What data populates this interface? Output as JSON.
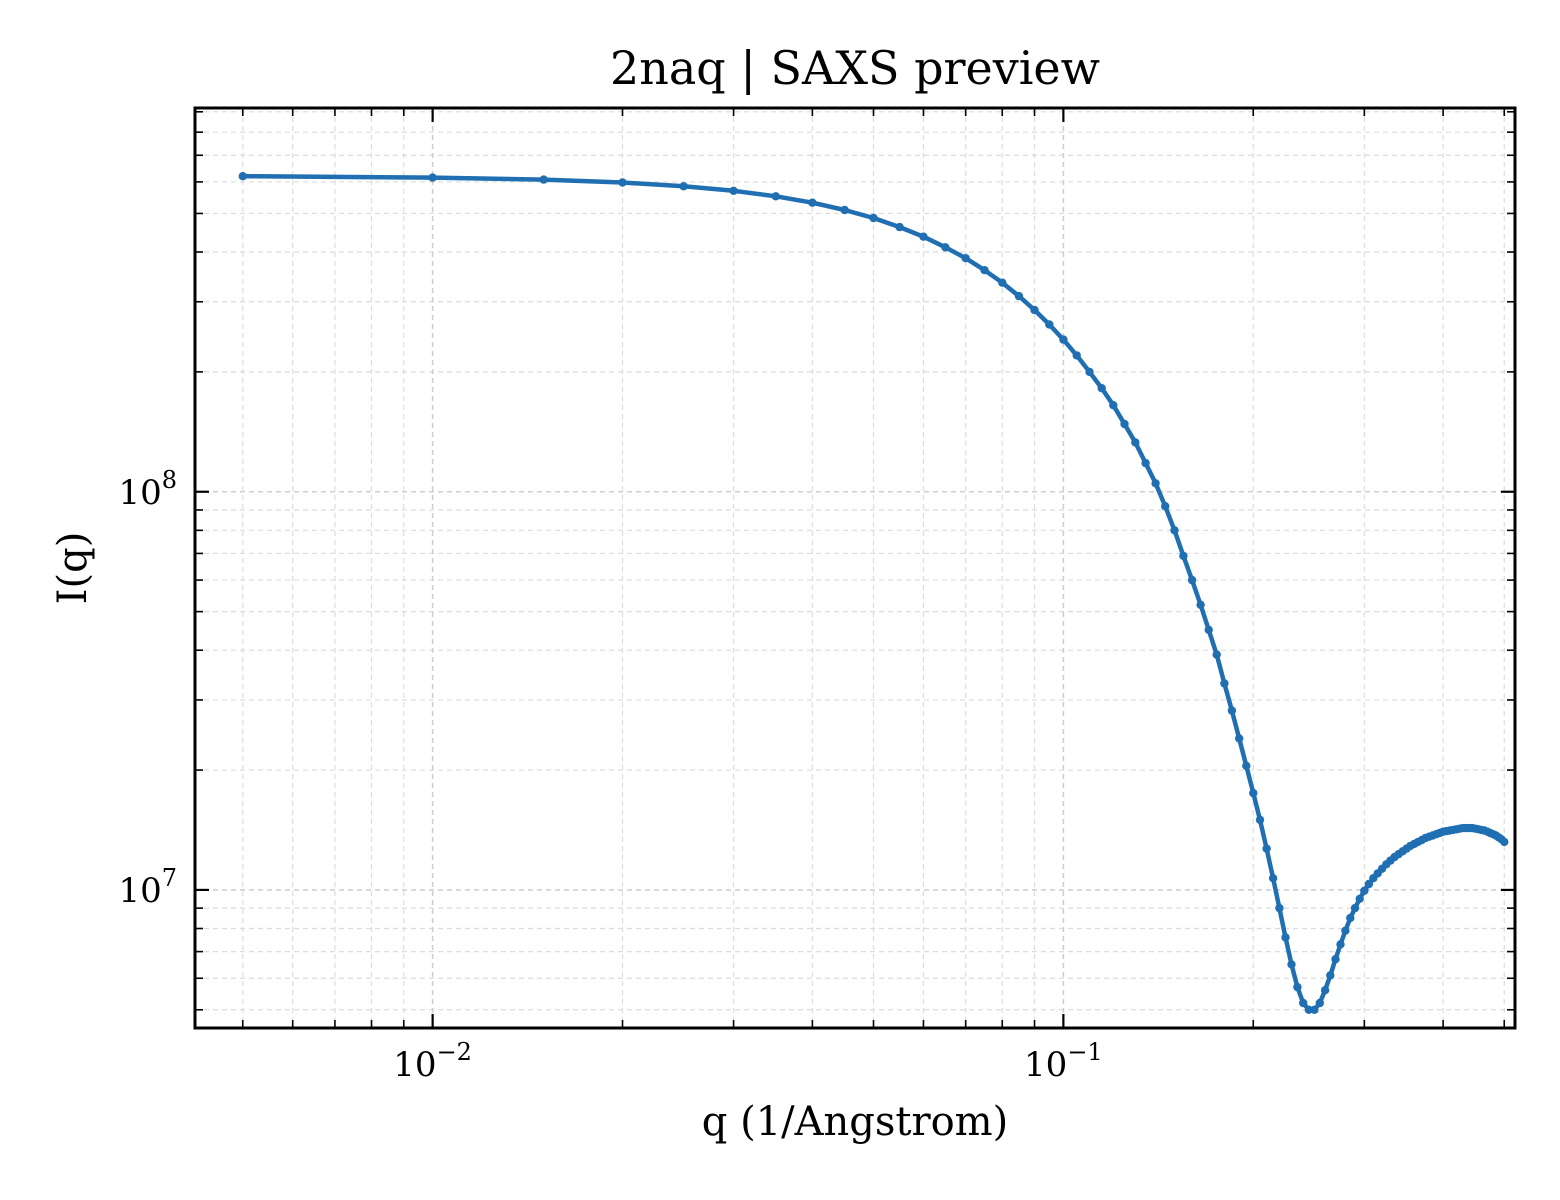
{
  "chart_data": {
    "type": "line",
    "title": "2naq | SAXS preview",
    "xlabel": "q (1/Angstrom)",
    "ylabel": "I(q)",
    "x_scale": "log",
    "y_scale": "log",
    "xlim": [
      0.0042,
      0.52
    ],
    "ylim": [
      4500000.0,
      920000000.0
    ],
    "grid": true,
    "legend": "none",
    "line_color": "#1f6fb2",
    "x_ticks": [
      {
        "value": 0.01,
        "base": "10",
        "exp": "−2"
      },
      {
        "value": 0.1,
        "base": "10",
        "exp": "−1"
      }
    ],
    "y_ticks": [
      {
        "value": 10000000.0,
        "base": "10",
        "exp": "7"
      },
      {
        "value": 100000000.0,
        "base": "10",
        "exp": "8"
      }
    ],
    "series": [
      {
        "x": [
          0.005,
          0.01,
          0.015,
          0.02,
          0.025,
          0.03,
          0.035,
          0.04,
          0.045,
          0.05,
          0.055,
          0.06,
          0.065,
          0.07,
          0.075,
          0.08,
          0.085,
          0.09,
          0.095,
          0.1,
          0.105,
          0.11,
          0.115,
          0.12,
          0.125,
          0.13,
          0.135,
          0.14,
          0.145,
          0.15,
          0.155,
          0.16,
          0.165,
          0.17,
          0.175,
          0.18,
          0.185,
          0.19,
          0.195,
          0.2,
          0.205,
          0.21,
          0.215,
          0.22,
          0.225,
          0.23,
          0.235,
          0.24,
          0.245,
          0.25,
          0.255,
          0.26,
          0.265,
          0.27,
          0.275,
          0.28,
          0.285,
          0.29,
          0.295,
          0.3,
          0.305,
          0.31,
          0.315,
          0.32,
          0.325,
          0.33,
          0.335,
          0.34,
          0.345,
          0.35,
          0.355,
          0.36,
          0.365,
          0.37,
          0.375,
          0.38,
          0.385,
          0.39,
          0.395,
          0.4,
          0.405,
          0.41,
          0.415,
          0.42,
          0.425,
          0.43,
          0.435,
          0.44,
          0.445,
          0.45,
          0.455,
          0.46,
          0.465,
          0.47,
          0.475,
          0.48,
          0.485,
          0.49,
          0.495,
          0.5
        ],
        "y": [
          620000000.0,
          615000000.0,
          608000000.0,
          598000000.0,
          585000000.0,
          570000000.0,
          552000000.0,
          532000000.0,
          510000000.0,
          487000000.0,
          462000000.0,
          437000000.0,
          411000000.0,
          386000000.0,
          360000000.0,
          335000000.0,
          310000000.0,
          286000000.0,
          263000000.0,
          241000000.0,
          220000000.0,
          200000000.0,
          182000000.0,
          165000000.0,
          148000000.0,
          133000000.0,
          118000000.0,
          105000000.0,
          92000000.0,
          80000000.0,
          69000000.0,
          60000000.0,
          52000000.0,
          45000000.0,
          39000000.0,
          33000000.0,
          28200000.0,
          24000000.0,
          20500000.0,
          17500000.0,
          15000000.0,
          12700000.0,
          10700000.0,
          9000000.0,
          7600000.0,
          6500000.0,
          5700000.0,
          5200000.0,
          5000000.0,
          5000000.0,
          5200000.0,
          5600000.0,
          6100000.0,
          6700000.0,
          7300000.0,
          7900000.0,
          8500000.0,
          9000000.0,
          9500000.0,
          9950000.0,
          10350000.0,
          10700000.0,
          11000000.0,
          11300000.0,
          11600000.0,
          11850000.0,
          12100000.0,
          12300000.0,
          12500000.0,
          12700000.0,
          12900000.0,
          13050000.0,
          13200000.0,
          13350000.0,
          13500000.0,
          13600000.0,
          13700000.0,
          13800000.0,
          13900000.0,
          14000000.0,
          14050000.0,
          14100000.0,
          14150000.0,
          14200000.0,
          14250000.0,
          14300000.0,
          14300000.0,
          14300000.0,
          14300000.0,
          14250000.0,
          14200000.0,
          14150000.0,
          14100000.0,
          14000000.0,
          13900000.0,
          13800000.0,
          13700000.0,
          13550000.0,
          13400000.0,
          13200000.0
        ]
      }
    ]
  }
}
